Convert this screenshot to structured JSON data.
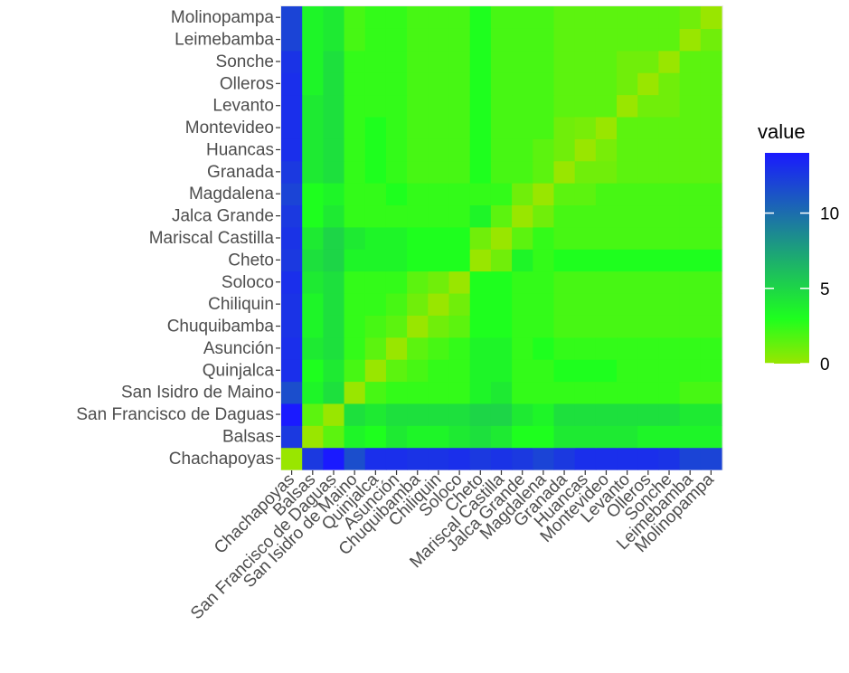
{
  "chart_data": {
    "type": "heatmap",
    "title": "",
    "xlabel": "",
    "ylabel": "",
    "x_categories": [
      "Chachapoyas",
      "Balsas",
      "San Francisco de Daguas",
      "San Isidro de Maino",
      "Quinjalca",
      "Asunción",
      "Chuquibamba",
      "Chiliquin",
      "Soloco",
      "Cheto",
      "Mariscal Castilla",
      "Jalca Grande",
      "Magdalena",
      "Granada",
      "Huancas",
      "Montevideo",
      "Levanto",
      "Olleros",
      "Sonche",
      "Leimebamba",
      "Molinopampa"
    ],
    "y_categories": [
      "Chachapoyas",
      "Balsas",
      "San Francisco de Daguas",
      "San Isidro de Maino",
      "Quinjalca",
      "Asunción",
      "Chuquibamba",
      "Chiliquin",
      "Soloco",
      "Cheto",
      "Mariscal Castilla",
      "Jalca Grande",
      "Magdalena",
      "Granada",
      "Huancas",
      "Montevideo",
      "Levanto",
      "Olleros",
      "Sonche",
      "Leimebamba",
      "Molinopampa"
    ],
    "z": [
      [
        0.0,
        12.5,
        14.0,
        11.5,
        13.0,
        13.0,
        12.8,
        12.8,
        13.0,
        12.5,
        12.8,
        12.5,
        12.0,
        12.5,
        13.0,
        13.0,
        13.0,
        13.0,
        12.8,
        12.0,
        12.0
      ],
      [
        12.5,
        0.0,
        1.5,
        3.5,
        3.0,
        4.0,
        3.5,
        3.5,
        4.0,
        4.5,
        4.0,
        3.0,
        3.0,
        4.0,
        4.0,
        4.0,
        4.0,
        3.5,
        3.5,
        3.5,
        3.5
      ],
      [
        14.0,
        1.5,
        0.0,
        4.5,
        4.0,
        4.5,
        4.5,
        4.5,
        4.5,
        5.0,
        5.0,
        4.0,
        3.5,
        4.5,
        4.5,
        4.5,
        4.5,
        4.5,
        4.5,
        4.0,
        4.0
      ],
      [
        11.5,
        3.5,
        4.5,
        0.0,
        2.0,
        2.5,
        2.5,
        2.5,
        2.5,
        3.5,
        4.0,
        2.5,
        2.5,
        2.5,
        2.5,
        2.5,
        2.5,
        2.5,
        2.5,
        2.0,
        2.0
      ],
      [
        13.0,
        3.0,
        4.0,
        2.0,
        0.0,
        1.5,
        2.0,
        2.5,
        2.5,
        3.5,
        3.5,
        2.5,
        2.5,
        3.0,
        3.0,
        3.0,
        2.5,
        2.5,
        2.5,
        2.5,
        2.5
      ],
      [
        13.0,
        4.0,
        4.5,
        2.5,
        1.5,
        0.0,
        1.5,
        2.0,
        2.5,
        3.5,
        3.5,
        2.5,
        3.0,
        2.5,
        2.5,
        2.5,
        2.5,
        2.5,
        2.5,
        2.5,
        2.5
      ],
      [
        12.8,
        3.5,
        4.5,
        2.5,
        2.0,
        1.5,
        0.0,
        1.0,
        1.5,
        3.0,
        3.0,
        2.5,
        2.5,
        2.0,
        2.0,
        2.0,
        2.0,
        2.0,
        2.0,
        2.0,
        2.0
      ],
      [
        12.8,
        3.5,
        4.5,
        2.5,
        2.5,
        2.0,
        1.0,
        0.0,
        1.0,
        3.0,
        3.0,
        2.5,
        2.5,
        2.0,
        2.0,
        2.0,
        2.0,
        2.0,
        2.0,
        2.0,
        2.0
      ],
      [
        13.0,
        4.0,
        4.5,
        2.5,
        2.5,
        2.5,
        1.5,
        1.0,
        0.0,
        3.0,
        3.0,
        2.5,
        2.5,
        2.0,
        2.0,
        2.0,
        2.0,
        2.0,
        2.0,
        2.0,
        2.0
      ],
      [
        12.5,
        4.5,
        5.0,
        3.5,
        3.5,
        3.5,
        3.0,
        3.0,
        3.0,
        0.0,
        1.0,
        3.5,
        2.5,
        3.0,
        3.0,
        3.0,
        3.0,
        3.0,
        3.0,
        3.0,
        3.0
      ],
      [
        12.8,
        4.0,
        5.0,
        4.0,
        3.5,
        3.5,
        3.0,
        3.0,
        3.0,
        1.0,
        0.0,
        1.5,
        2.5,
        2.0,
        2.0,
        2.0,
        2.0,
        2.0,
        2.0,
        2.0,
        2.0
      ],
      [
        12.5,
        3.0,
        4.0,
        2.5,
        2.5,
        2.5,
        2.5,
        2.5,
        2.5,
        3.5,
        1.5,
        0.0,
        1.0,
        2.0,
        2.0,
        2.0,
        2.0,
        2.0,
        2.0,
        2.0,
        2.0
      ],
      [
        12.0,
        3.0,
        3.5,
        2.5,
        2.5,
        3.0,
        2.5,
        2.5,
        2.5,
        2.5,
        2.5,
        1.0,
        0.0,
        1.5,
        1.5,
        2.0,
        2.0,
        2.0,
        2.0,
        2.0,
        2.0
      ],
      [
        12.5,
        4.0,
        4.5,
        2.5,
        3.0,
        2.5,
        2.0,
        2.0,
        2.0,
        3.0,
        2.0,
        2.0,
        1.5,
        0.0,
        1.0,
        1.0,
        1.5,
        1.5,
        1.5,
        1.5,
        1.5
      ],
      [
        13.0,
        4.0,
        4.5,
        2.5,
        3.0,
        2.5,
        2.0,
        2.0,
        2.0,
        3.0,
        2.0,
        2.0,
        1.5,
        1.0,
        0.0,
        0.8,
        1.5,
        1.5,
        1.5,
        1.5,
        1.5
      ],
      [
        13.0,
        4.0,
        4.5,
        2.5,
        3.0,
        2.5,
        2.0,
        2.0,
        2.0,
        3.0,
        2.0,
        2.0,
        2.0,
        1.0,
        0.8,
        0.0,
        1.5,
        1.5,
        1.5,
        1.5,
        1.5
      ],
      [
        13.0,
        4.0,
        4.5,
        2.5,
        2.5,
        2.5,
        2.0,
        2.0,
        2.0,
        3.0,
        2.0,
        2.0,
        2.0,
        1.5,
        1.5,
        1.5,
        0.0,
        1.0,
        1.0,
        1.5,
        1.5
      ],
      [
        13.0,
        3.5,
        4.5,
        2.5,
        2.5,
        2.5,
        2.0,
        2.0,
        2.0,
        3.0,
        2.0,
        2.0,
        2.0,
        1.5,
        1.5,
        1.5,
        1.0,
        0.0,
        1.0,
        1.5,
        1.5
      ],
      [
        12.8,
        3.5,
        4.5,
        2.5,
        2.5,
        2.5,
        2.0,
        2.0,
        2.0,
        3.0,
        2.0,
        2.0,
        2.0,
        1.5,
        1.5,
        1.5,
        1.0,
        1.0,
        0.0,
        1.5,
        1.5
      ],
      [
        12.0,
        3.5,
        4.0,
        2.0,
        2.5,
        2.5,
        2.0,
        2.0,
        2.0,
        3.0,
        2.0,
        2.0,
        2.0,
        1.5,
        1.5,
        1.5,
        1.5,
        1.5,
        1.5,
        0.0,
        1.0
      ],
      [
        12.0,
        3.5,
        4.0,
        2.0,
        2.5,
        2.5,
        2.0,
        2.0,
        2.0,
        3.0,
        2.0,
        2.0,
        2.0,
        1.5,
        1.5,
        1.5,
        1.5,
        1.5,
        1.5,
        1.0,
        0.0
      ]
    ],
    "value_range": [
      0,
      14
    ],
    "colorscale": [
      {
        "value": 0,
        "color": "#99e600"
      },
      {
        "value": 3,
        "color": "#1eff1e"
      },
      {
        "value": 14,
        "color": "#1a1aff"
      }
    ],
    "colorbar": {
      "title": "value",
      "ticks": [
        0,
        5,
        10
      ],
      "tick_labels": [
        "0",
        "5",
        "10"
      ],
      "position": "right"
    },
    "grid": true
  }
}
